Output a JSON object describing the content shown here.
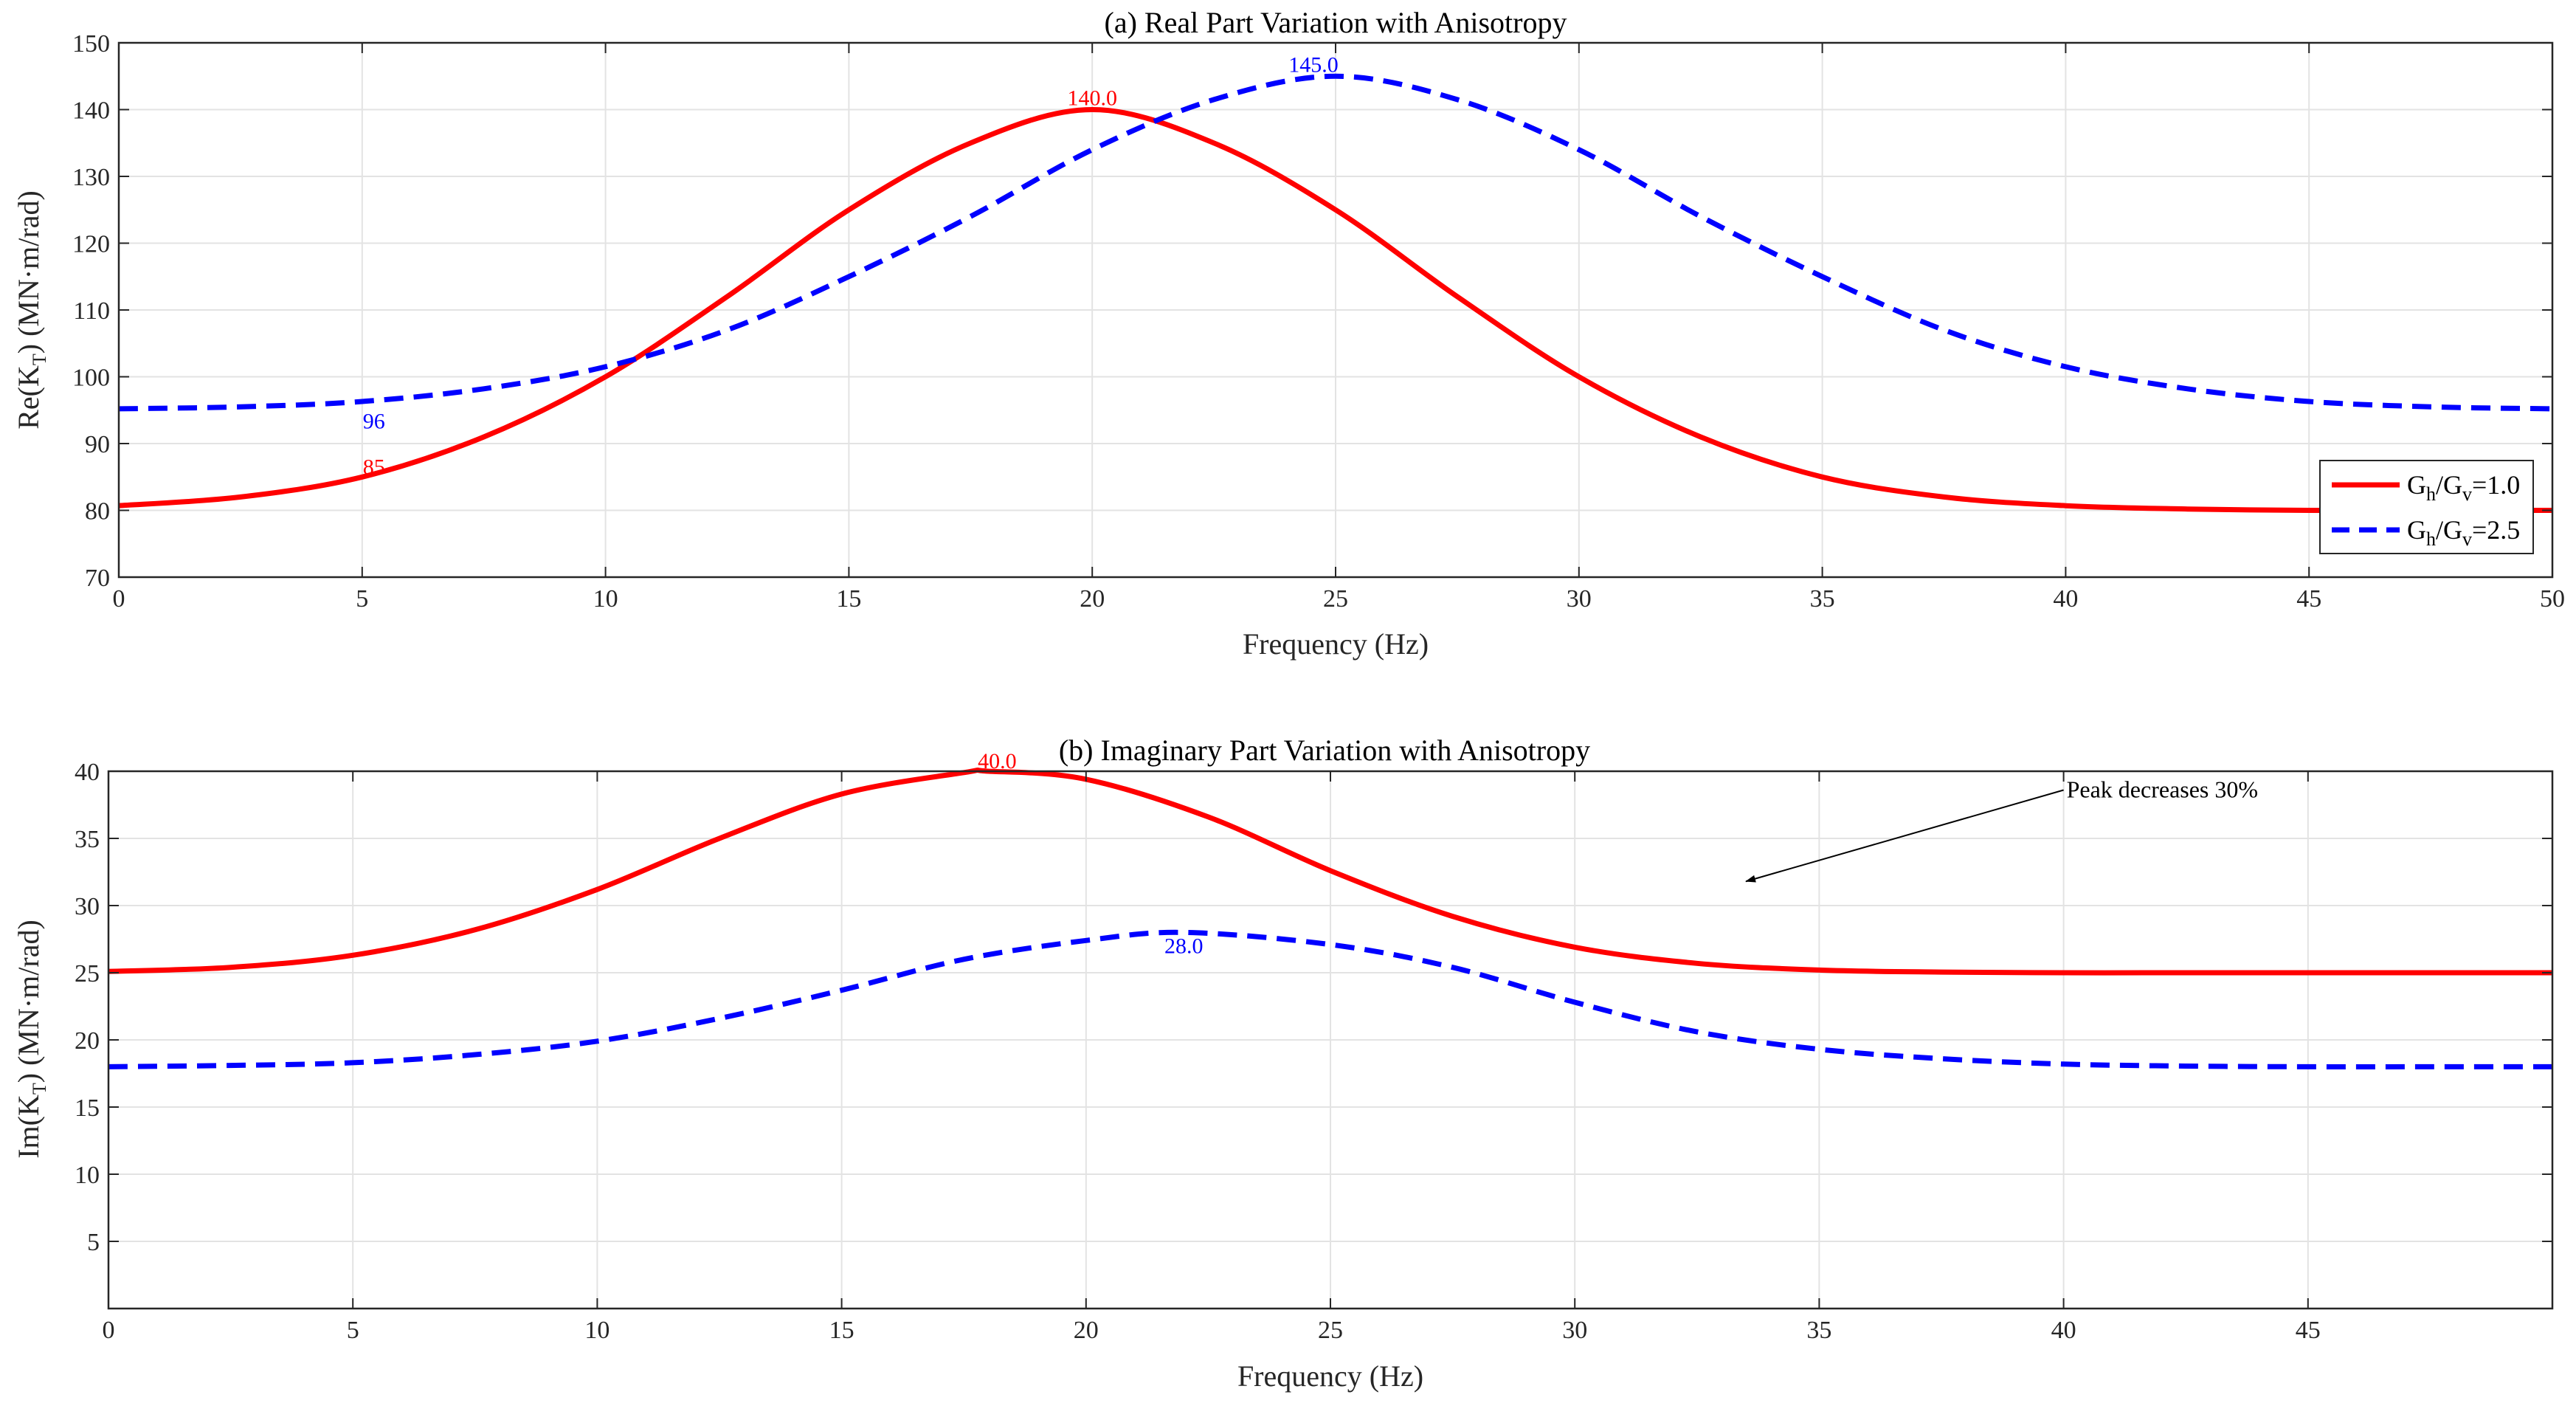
{
  "chart_data": [
    {
      "type": "line",
      "title": "(a) Real Part Variation with Anisotropy",
      "xlabel": "Frequency (Hz)",
      "ylabel": {
        "prefix": "Re(K",
        "sub": "T",
        "suffix": ") (MN·m/rad)"
      },
      "xlim": [
        0,
        50
      ],
      "ylim": [
        70,
        150
      ],
      "xticks": [
        "0",
        "5",
        "10",
        "15",
        "20",
        "25",
        "30",
        "35",
        "40",
        "45",
        "50"
      ],
      "yticks": [
        "70",
        "80",
        "90",
        "100",
        "110",
        "120",
        "130",
        "140",
        "150"
      ],
      "grid": true,
      "legend_position": "lower-right",
      "series": [
        {
          "name": "Gh/Gv=1.0",
          "legend": {
            "pre": "G",
            "sub1": "h",
            "mid": "/G",
            "sub2": "v",
            "post": "=1.0"
          },
          "color": "#ff0000",
          "style": "solid",
          "x": [
            0,
            2.5,
            5,
            7.5,
            10,
            12.5,
            15,
            17.5,
            20,
            22.5,
            25,
            27.5,
            30,
            32.5,
            35,
            37.5,
            40,
            42.5,
            45,
            47.5,
            50
          ],
          "y": [
            80.7,
            82,
            85,
            91,
            100,
            112,
            125,
            135,
            140,
            135,
            125,
            112,
            100,
            91,
            85,
            82,
            80.7,
            80.2,
            80,
            80,
            80
          ]
        },
        {
          "name": "Gh/Gv=2.5",
          "legend": {
            "pre": "G",
            "sub1": "h",
            "mid": "/G",
            "sub2": "v",
            "post": "=2.5"
          },
          "color": "#0000ff",
          "style": "dashed",
          "x": [
            0,
            2.5,
            5,
            7.5,
            10,
            12.5,
            15,
            17.5,
            20,
            22.5,
            25,
            27.5,
            30,
            32.5,
            35,
            37.5,
            40,
            42.5,
            45,
            47.5,
            50
          ],
          "y": [
            95.2,
            95.5,
            96.3,
            98.2,
            101.5,
            107,
            115,
            124,
            134,
            141.5,
            145,
            141.5,
            134,
            124,
            115,
            107,
            101.5,
            98.2,
            96.3,
            95.5,
            95.2
          ]
        }
      ],
      "annotations": [
        {
          "text": "140.0",
          "x": 20,
          "y": 140,
          "color": "#ff0000"
        },
        {
          "text": "145.0",
          "x": 25,
          "y": 145,
          "color": "#0000ff"
        },
        {
          "text": "96",
          "x": 5,
          "y": 96,
          "color": "#0000ff"
        },
        {
          "text": "85",
          "x": 5,
          "y": 85,
          "color": "#ff0000"
        }
      ]
    },
    {
      "type": "line",
      "title": "(b) Imaginary Part Variation with Anisotropy",
      "xlabel": "Frequency (Hz)",
      "ylabel": {
        "prefix": "Im(K",
        "sub": "T",
        "suffix": ") (MN·m/rad)"
      },
      "xlim": [
        0,
        50
      ],
      "ylim": [
        0,
        40
      ],
      "xticks": [
        "0",
        "5",
        "10",
        "15",
        "20",
        "25",
        "30",
        "35",
        "40",
        "45"
      ],
      "yticks": [
        "5",
        "10",
        "15",
        "20",
        "25",
        "30",
        "35",
        "40"
      ],
      "grid": true,
      "series": [
        {
          "name": "Gh/Gv=1.0",
          "color": "#ff0000",
          "style": "solid",
          "x": [
            0,
            2.5,
            5,
            7.5,
            10,
            12.5,
            15,
            17.5,
            18,
            20,
            22.5,
            25,
            27.5,
            30,
            32.5,
            35,
            37.5,
            40,
            42.5,
            45,
            47.5,
            50
          ],
          "y": [
            25.1,
            25.4,
            26.3,
            28.2,
            31.2,
            35,
            38.3,
            39.9,
            40,
            39.4,
            36.6,
            32.6,
            29.2,
            26.9,
            25.7,
            25.2,
            25.05,
            25,
            25,
            25,
            25,
            25
          ]
        },
        {
          "name": "Gh/Gv=2.5",
          "color": "#0000ff",
          "style": "dashed",
          "x": [
            0,
            2.5,
            5,
            7.5,
            10,
            12.5,
            15,
            17.5,
            20,
            22,
            25,
            27.5,
            30,
            32.5,
            35,
            37.5,
            40,
            42.5,
            45,
            47.5,
            50
          ],
          "y": [
            18,
            18.1,
            18.3,
            18.9,
            19.9,
            21.6,
            23.7,
            26,
            27.4,
            28,
            27.1,
            25.4,
            22.8,
            20.6,
            19.3,
            18.6,
            18.2,
            18.05,
            18,
            18,
            18
          ]
        }
      ],
      "annotations": [
        {
          "text": "40.0",
          "x": 18,
          "y": 40,
          "color": "#ff0000"
        },
        {
          "text": "28.0",
          "x": 22,
          "y": 28,
          "color": "#0000ff"
        },
        {
          "text": "Peak decreases 30%",
          "x": 33.5,
          "y": 31.8,
          "arrow": true,
          "arrow_to": {
            "x": 33.5,
            "y": 31.8
          },
          "color": "#000000"
        }
      ]
    }
  ]
}
